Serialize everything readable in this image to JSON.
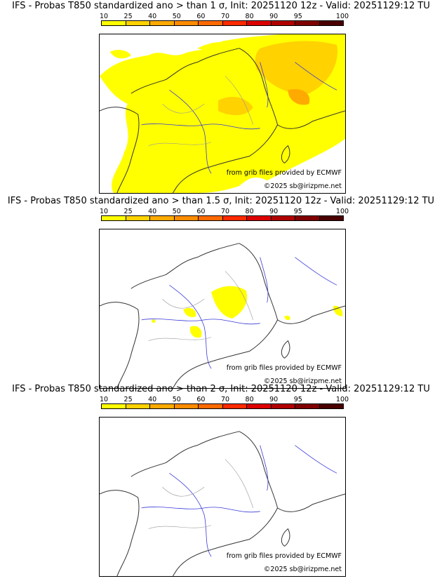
{
  "colors": [
    "#ffff00",
    "#ffd200",
    "#ffaa00",
    "#ff8c00",
    "#ff6a00",
    "#ff2a00",
    "#dd0000",
    "#b00000",
    "#800000",
    "#4a0000"
  ],
  "colorbar_labels": [
    "10",
    "25",
    "40",
    "50",
    "60",
    "70",
    "80",
    "90",
    "95",
    "100"
  ],
  "credit_source": "from grib files provided by ECMWF",
  "credit_copyright": "©2025 sb@irizpme.net",
  "panels": [
    {
      "title": "IFS - Probas T850  standardized ano > than 1 σ, Init: 20251120 12z - Valid: 20251129:12 TU",
      "coverage": "wide"
    },
    {
      "title": "IFS - Probas T850  standardized ano > than 1.5 σ, Init: 20251120 12z - Valid: 20251129:12 TU",
      "coverage": "patchy"
    },
    {
      "title": "IFS - Probas T850  standardized ano > than 2 σ, Init: 20251120 12z - Valid: 20251129:12 TU",
      "coverage": "none"
    }
  ]
}
